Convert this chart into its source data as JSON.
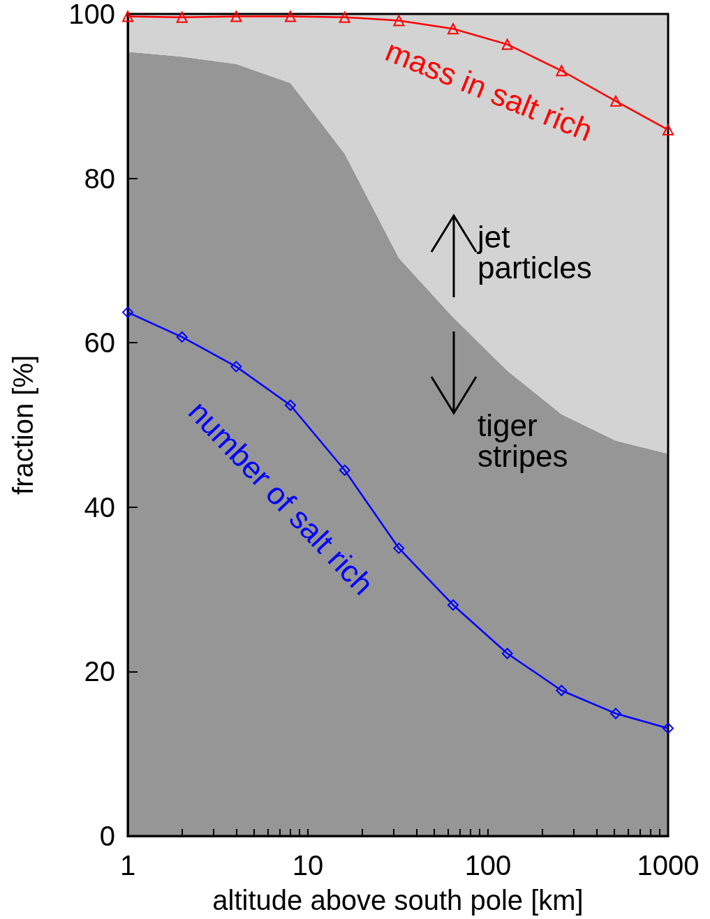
{
  "chart_data": {
    "type": "line",
    "xlabel": "altitude above south pole [km]",
    "ylabel": "fraction [%]",
    "log": "x",
    "x": [
      1,
      2,
      4,
      8,
      16,
      32,
      64,
      128,
      256,
      512,
      1000
    ],
    "xlim": [
      1,
      1000
    ],
    "xticks": [
      1,
      {
        "value": 2,
        "label": null
      },
      {
        "value": 3,
        "label": null
      },
      {
        "value": 4,
        "label": null
      },
      {
        "value": 5,
        "label": null
      },
      {
        "value": 6,
        "label": null
      },
      {
        "value": 7,
        "label": null
      },
      {
        "value": 8,
        "label": null
      },
      {
        "value": 9,
        "label": null
      },
      10,
      {
        "value": 20,
        "label": null
      },
      {
        "value": 30,
        "label": null
      },
      {
        "value": 40,
        "label": null
      },
      {
        "value": 50,
        "label": null
      },
      {
        "value": 60,
        "label": null
      },
      {
        "value": 70,
        "label": null
      },
      {
        "value": 80,
        "label": null
      },
      {
        "value": 90,
        "label": null
      },
      100,
      {
        "value": 200,
        "label": null
      },
      {
        "value": 300,
        "label": null
      },
      {
        "value": 400,
        "label": null
      },
      {
        "value": 500,
        "label": null
      },
      {
        "value": 600,
        "label": null
      },
      {
        "value": 700,
        "label": null
      },
      {
        "value": 800,
        "label": null
      },
      {
        "value": 900,
        "label": null
      },
      1000
    ],
    "ylim": [
      0,
      100
    ],
    "yticks": [
      0,
      20,
      40,
      60,
      80,
      100
    ],
    "grid": false,
    "legend": false,
    "stacked": true,
    "series": [
      {
        "type": "area",
        "color": "#969696",
        "values": [
          95.4,
          94.8,
          93.9,
          91.6,
          83.0,
          70.3,
          63.1,
          56.6,
          51.3,
          48.1,
          46.5
        ]
      },
      {
        "type": "area",
        "color": "#d3d3d3",
        "values": [
          4.6,
          5.2,
          6.1,
          8.4,
          17.0,
          29.7,
          36.9,
          43.4,
          48.7,
          51.9,
          53.5
        ]
      },
      {
        "name": "mass in salt rich",
        "color": "#ff0000",
        "marker": "triangle",
        "values": [
          99.7,
          99.6,
          99.7,
          99.7,
          99.6,
          99.2,
          98.2,
          96.3,
          93.1,
          89.4,
          85.9
        ]
      },
      {
        "name": "number of salt rich",
        "color": "#0000ff",
        "marker": "diamond",
        "values": [
          63.7,
          60.7,
          57.1,
          52.4,
          44.5,
          35.0,
          28.1,
          22.2,
          17.7,
          14.9,
          13.1
        ]
      }
    ],
    "annotations": [
      "jet particles",
      "tiger stripes"
    ]
  }
}
